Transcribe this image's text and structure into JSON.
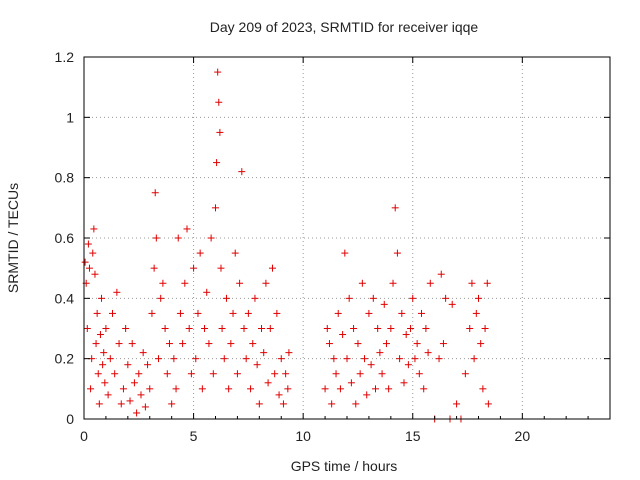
{
  "chart_data": {
    "type": "scatter",
    "title": "Day 209 of 2023, SRMTID for receiver iqqe",
    "xlabel": "GPS time / hours",
    "ylabel": "SRMTID / TECUs",
    "xlim": [
      0,
      24
    ],
    "ylim": [
      0,
      1.2
    ],
    "x_ticks": [
      0,
      5,
      10,
      15,
      20
    ],
    "x_tick_labels": [
      "0",
      "5",
      "10",
      "15",
      "20"
    ],
    "y_ticks": [
      0,
      0.2,
      0.4,
      0.6,
      0.8,
      1.0,
      1.2
    ],
    "y_tick_labels": [
      "0",
      "0.2",
      "0.4",
      "0.6",
      "0.8",
      "1",
      "1.2"
    ],
    "grid": true,
    "marker": "+",
    "series": [
      {
        "name": "SRMTID",
        "color": "#e00000",
        "points": [
          [
            0.05,
            0.52
          ],
          [
            0.1,
            0.45
          ],
          [
            0.15,
            0.3
          ],
          [
            0.2,
            0.58
          ],
          [
            0.25,
            0.5
          ],
          [
            0.3,
            0.1
          ],
          [
            0.35,
            0.2
          ],
          [
            0.4,
            0.55
          ],
          [
            0.45,
            0.63
          ],
          [
            0.5,
            0.48
          ],
          [
            0.55,
            0.25
          ],
          [
            0.6,
            0.35
          ],
          [
            0.65,
            0.15
          ],
          [
            0.7,
            0.05
          ],
          [
            0.75,
            0.28
          ],
          [
            0.8,
            0.4
          ],
          [
            0.85,
            0.18
          ],
          [
            0.9,
            0.22
          ],
          [
            0.95,
            0.12
          ],
          [
            1.0,
            0.3
          ],
          [
            1.1,
            0.08
          ],
          [
            1.2,
            0.2
          ],
          [
            1.3,
            0.35
          ],
          [
            1.4,
            0.15
          ],
          [
            1.5,
            0.42
          ],
          [
            1.6,
            0.25
          ],
          [
            1.7,
            0.05
          ],
          [
            1.8,
            0.1
          ],
          [
            1.9,
            0.3
          ],
          [
            2.0,
            0.18
          ],
          [
            2.1,
            0.06
          ],
          [
            2.2,
            0.25
          ],
          [
            2.3,
            0.12
          ],
          [
            2.4,
            0.02
          ],
          [
            2.5,
            0.15
          ],
          [
            2.6,
            0.08
          ],
          [
            2.7,
            0.22
          ],
          [
            2.8,
            0.04
          ],
          [
            2.9,
            0.18
          ],
          [
            3.0,
            0.1
          ],
          [
            3.1,
            0.35
          ],
          [
            3.2,
            0.5
          ],
          [
            3.25,
            0.75
          ],
          [
            3.3,
            0.6
          ],
          [
            3.4,
            0.2
          ],
          [
            3.5,
            0.4
          ],
          [
            3.6,
            0.45
          ],
          [
            3.7,
            0.3
          ],
          [
            3.8,
            0.15
          ],
          [
            3.9,
            0.25
          ],
          [
            4.0,
            0.05
          ],
          [
            4.1,
            0.2
          ],
          [
            4.2,
            0.1
          ],
          [
            4.3,
            0.6
          ],
          [
            4.4,
            0.35
          ],
          [
            4.5,
            0.25
          ],
          [
            4.6,
            0.45
          ],
          [
            4.7,
            0.63
          ],
          [
            4.8,
            0.3
          ],
          [
            4.9,
            0.15
          ],
          [
            5.0,
            0.5
          ],
          [
            5.1,
            0.2
          ],
          [
            5.2,
            0.35
          ],
          [
            5.3,
            0.55
          ],
          [
            5.4,
            0.1
          ],
          [
            5.5,
            0.3
          ],
          [
            5.6,
            0.42
          ],
          [
            5.7,
            0.25
          ],
          [
            5.8,
            0.6
          ],
          [
            5.9,
            0.15
          ],
          [
            6.0,
            0.7
          ],
          [
            6.05,
            0.85
          ],
          [
            6.1,
            1.15
          ],
          [
            6.15,
            1.05
          ],
          [
            6.2,
            0.95
          ],
          [
            6.25,
            0.5
          ],
          [
            6.3,
            0.3
          ],
          [
            6.4,
            0.2
          ],
          [
            6.5,
            0.4
          ],
          [
            6.6,
            0.1
          ],
          [
            6.7,
            0.25
          ],
          [
            6.8,
            0.35
          ],
          [
            6.9,
            0.55
          ],
          [
            7.0,
            0.15
          ],
          [
            7.1,
            0.45
          ],
          [
            7.2,
            0.82
          ],
          [
            7.3,
            0.3
          ],
          [
            7.4,
            0.2
          ],
          [
            7.5,
            0.35
          ],
          [
            7.6,
            0.1
          ],
          [
            7.7,
            0.25
          ],
          [
            7.8,
            0.4
          ],
          [
            7.9,
            0.18
          ],
          [
            8.0,
            0.05
          ],
          [
            8.1,
            0.3
          ],
          [
            8.2,
            0.22
          ],
          [
            8.3,
            0.45
          ],
          [
            8.4,
            0.12
          ],
          [
            8.5,
            0.3
          ],
          [
            8.6,
            0.5
          ],
          [
            8.7,
            0.15
          ],
          [
            8.8,
            0.35
          ],
          [
            8.9,
            0.08
          ],
          [
            9.0,
            0.2
          ],
          [
            9.1,
            0.05
          ],
          [
            9.2,
            0.15
          ],
          [
            9.3,
            0.1
          ],
          [
            9.35,
            0.22
          ],
          [
            11.0,
            0.1
          ],
          [
            11.1,
            0.3
          ],
          [
            11.2,
            0.25
          ],
          [
            11.3,
            0.05
          ],
          [
            11.4,
            0.2
          ],
          [
            11.5,
            0.15
          ],
          [
            11.6,
            0.35
          ],
          [
            11.7,
            0.1
          ],
          [
            11.8,
            0.28
          ],
          [
            11.9,
            0.55
          ],
          [
            12.0,
            0.2
          ],
          [
            12.1,
            0.4
          ],
          [
            12.2,
            0.12
          ],
          [
            12.3,
            0.3
          ],
          [
            12.4,
            0.05
          ],
          [
            12.5,
            0.25
          ],
          [
            12.6,
            0.15
          ],
          [
            12.7,
            0.45
          ],
          [
            12.8,
            0.2
          ],
          [
            12.9,
            0.08
          ],
          [
            13.0,
            0.35
          ],
          [
            13.1,
            0.18
          ],
          [
            13.2,
            0.4
          ],
          [
            13.3,
            0.1
          ],
          [
            13.4,
            0.3
          ],
          [
            13.5,
            0.22
          ],
          [
            13.6,
            0.15
          ],
          [
            13.7,
            0.38
          ],
          [
            13.8,
            0.25
          ],
          [
            13.9,
            0.1
          ],
          [
            14.0,
            0.3
          ],
          [
            14.1,
            0.45
          ],
          [
            14.2,
            0.7
          ],
          [
            14.3,
            0.55
          ],
          [
            14.4,
            0.2
          ],
          [
            14.5,
            0.35
          ],
          [
            14.6,
            0.12
          ],
          [
            14.7,
            0.28
          ],
          [
            14.8,
            0.18
          ],
          [
            14.9,
            0.3
          ],
          [
            15.0,
            0.4
          ],
          [
            15.1,
            0.2
          ],
          [
            15.2,
            0.25
          ],
          [
            15.3,
            0.15
          ],
          [
            15.4,
            0.35
          ],
          [
            15.5,
            0.1
          ],
          [
            15.6,
            0.3
          ],
          [
            15.7,
            0.22
          ],
          [
            15.8,
            0.45
          ],
          [
            16.0,
            0.0
          ],
          [
            16.2,
            0.2
          ],
          [
            16.3,
            0.48
          ],
          [
            16.4,
            0.25
          ],
          [
            16.5,
            0.4
          ],
          [
            16.7,
            0.0
          ],
          [
            16.8,
            0.38
          ],
          [
            17.0,
            0.05
          ],
          [
            17.2,
            0.0
          ],
          [
            17.4,
            0.15
          ],
          [
            17.6,
            0.3
          ],
          [
            17.7,
            0.45
          ],
          [
            17.8,
            0.2
          ],
          [
            17.9,
            0.35
          ],
          [
            18.0,
            0.4
          ],
          [
            18.1,
            0.25
          ],
          [
            18.2,
            0.1
          ],
          [
            18.3,
            0.3
          ],
          [
            18.4,
            0.45
          ],
          [
            18.45,
            0.05
          ]
        ]
      }
    ]
  }
}
